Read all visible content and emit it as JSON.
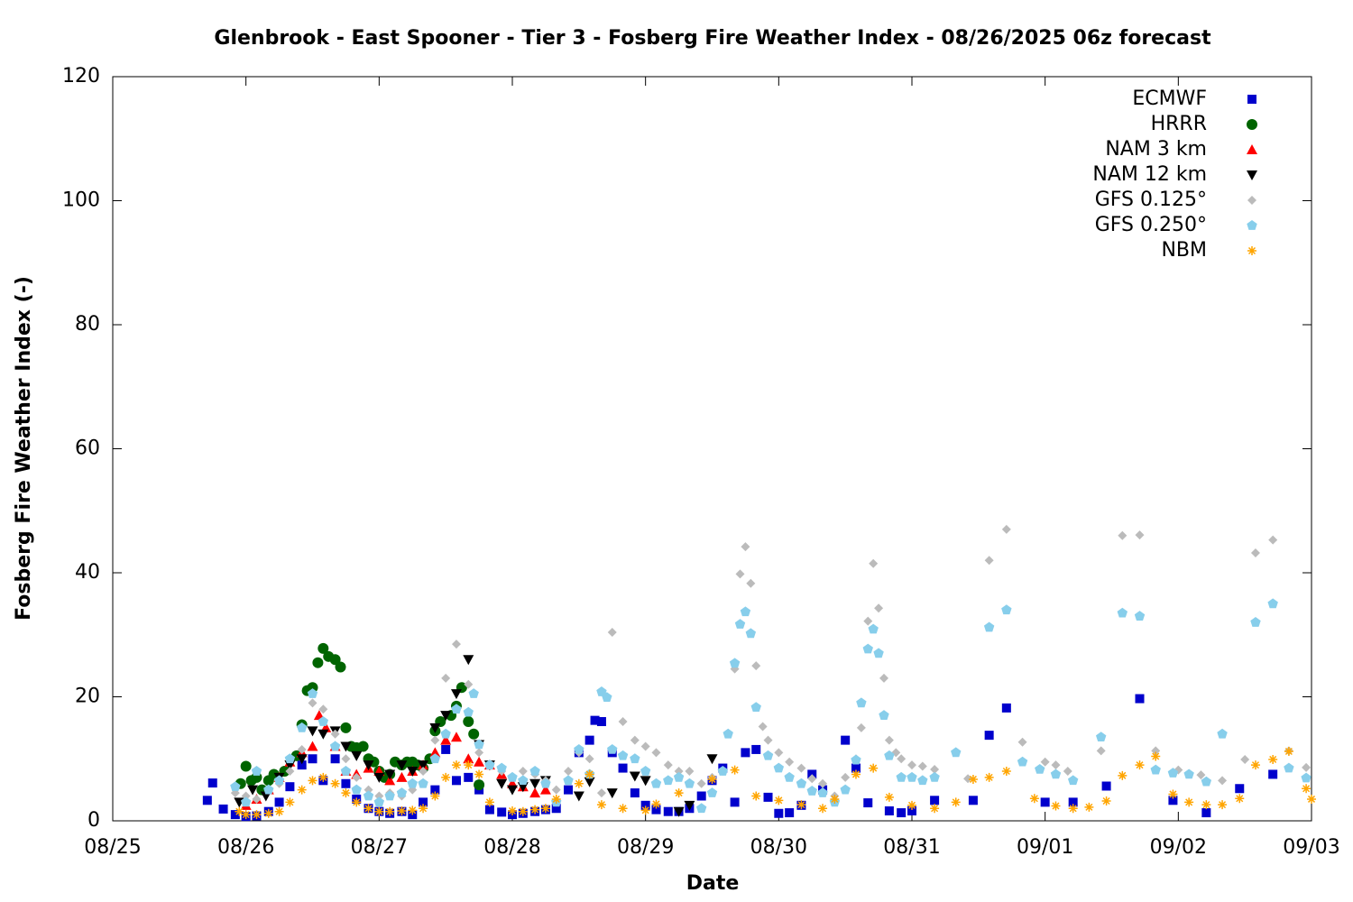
{
  "chart_data": {
    "type": "scatter",
    "title": "Glenbrook - East Spooner - Tier 3 - Fosberg Fire Weather Index - 08/26/2025 06z forecast",
    "x_label": "Date",
    "y_label": "Fosberg Fire Weather Index (-)",
    "xlim": [
      0,
      9
    ],
    "xticks": [
      {
        "value": 0,
        "label": "08/25"
      },
      {
        "value": 1,
        "label": "08/26"
      },
      {
        "value": 2,
        "label": "08/27"
      },
      {
        "value": 3,
        "label": "08/28"
      },
      {
        "value": 4,
        "label": "08/29"
      },
      {
        "value": 5,
        "label": "08/30"
      },
      {
        "value": 6,
        "label": "08/31"
      },
      {
        "value": 7,
        "label": "09/01"
      },
      {
        "value": 8,
        "label": "09/02"
      },
      {
        "value": 9,
        "label": "09/03"
      }
    ],
    "ylim": [
      0,
      120
    ],
    "yticks": [
      0,
      20,
      40,
      60,
      80,
      100,
      120
    ],
    "legend": "top-right",
    "series": [
      {
        "name": "ECMWF",
        "color": "#0000cc",
        "marker": "square",
        "x": [
          0.71,
          0.75,
          0.83,
          0.92,
          1.0,
          1.08,
          1.17,
          1.25,
          1.33,
          1.42,
          1.5,
          1.58,
          1.67,
          1.75,
          1.83,
          1.92,
          2.0,
          2.08,
          2.17,
          2.25,
          2.33,
          2.42,
          2.5,
          2.58,
          2.67,
          2.75,
          2.83,
          2.92,
          3.0,
          3.08,
          3.17,
          3.25,
          3.33,
          3.42,
          3.5,
          3.58,
          3.62,
          3.67,
          3.75,
          3.83,
          3.92,
          4.0,
          4.08,
          4.17,
          4.25,
          4.33,
          4.42,
          4.5,
          4.58,
          4.67,
          4.75,
          4.83,
          4.92,
          5.0,
          5.08,
          5.17,
          5.25,
          5.33,
          5.5,
          5.58,
          5.67,
          5.83,
          5.92,
          6.0,
          6.17,
          6.46,
          6.58,
          6.71,
          7.0,
          7.21,
          7.46,
          7.71,
          7.96,
          8.21,
          8.46,
          8.71
        ],
        "values": [
          3.3,
          6.1,
          1.9,
          1.0,
          0.7,
          0.8,
          1.5,
          3.0,
          5.5,
          9.0,
          10,
          6.5,
          10,
          6,
          3.5,
          2.0,
          1.5,
          1.2,
          1.5,
          1.0,
          3.0,
          5,
          11.5,
          6.5,
          7,
          5,
          1.8,
          1.4,
          1.0,
          1.2,
          1.5,
          1.8,
          2.0,
          5,
          11,
          13,
          16.2,
          16,
          11,
          8.5,
          4.5,
          2.5,
          1.8,
          1.5,
          1.5,
          2.0,
          4,
          6.5,
          8.5,
          3.0,
          11,
          11.5,
          3.8,
          1.2,
          1.3,
          2.5,
          7.5,
          5.0,
          13,
          8.5,
          2.9,
          1.6,
          1.3,
          1.6,
          3.3,
          3.3,
          13.8,
          18.2,
          3.0,
          3.0,
          5.6,
          19.7,
          3.3,
          1.3,
          5.2,
          7.5
        ]
      },
      {
        "name": "HRRR",
        "color": "#006400",
        "marker": "circle",
        "x": [
          0.96,
          1.0,
          1.04,
          1.08,
          1.12,
          1.17,
          1.21,
          1.29,
          1.38,
          1.42,
          1.46,
          1.5,
          1.54,
          1.58,
          1.62,
          1.67,
          1.71,
          1.75,
          1.79,
          1.83,
          1.88,
          1.92,
          1.96,
          2.0,
          2.04,
          2.08,
          2.12,
          2.17,
          2.21,
          2.25,
          2.29,
          2.33,
          2.38,
          2.42,
          2.46,
          2.54,
          2.58,
          2.62,
          2.67,
          2.71,
          2.75
        ],
        "values": [
          6,
          8.8,
          6.5,
          7,
          5,
          6.5,
          7.5,
          8,
          10.5,
          15.5,
          21,
          21.5,
          25.5,
          27.8,
          26.5,
          26,
          24.8,
          15,
          12,
          11.8,
          12,
          10,
          9.5,
          8,
          7,
          7.5,
          9.5,
          9,
          9.5,
          9.5,
          9,
          8.5,
          10,
          14.5,
          16,
          17,
          18.5,
          21.5,
          16,
          14,
          5.8
        ]
      },
      {
        "name": "NAM 3 km",
        "color": "#ff0000",
        "marker": "triangle-up",
        "x": [
          1.0,
          1.08,
          1.17,
          1.25,
          1.33,
          1.42,
          1.5,
          1.55,
          1.6,
          1.67,
          1.75,
          1.83,
          1.92,
          2.0,
          2.08,
          2.17,
          2.25,
          2.33,
          2.42,
          2.5,
          2.58,
          2.67,
          2.75,
          2.83,
          2.92,
          3.0,
          3.08,
          3.17,
          3.25
        ],
        "values": [
          2.5,
          3.5,
          5,
          7,
          9.5,
          11,
          12,
          17,
          15,
          12,
          8,
          7.5,
          8.5,
          8,
          6.5,
          7,
          8,
          9,
          11,
          13,
          13.5,
          10,
          9.5,
          9,
          7.5,
          6,
          5.5,
          4.5,
          5
        ]
      },
      {
        "name": "NAM 12 km",
        "color": "#000000",
        "marker": "triangle-down",
        "x": [
          0.95,
          1.05,
          1.15,
          1.25,
          1.33,
          1.42,
          1.5,
          1.58,
          1.67,
          1.75,
          1.83,
          1.92,
          2.0,
          2.08,
          2.17,
          2.25,
          2.33,
          2.42,
          2.5,
          2.58,
          2.67,
          2.75,
          2.83,
          2.92,
          3.0,
          3.08,
          3.17,
          3.25,
          3.5,
          3.58,
          3.75,
          3.92,
          4.0,
          4.25,
          4.33,
          4.5
        ],
        "values": [
          3,
          5,
          4,
          7,
          9,
          10,
          14.5,
          14,
          14.5,
          12,
          10.5,
          9,
          7,
          7.5,
          9,
          8,
          9,
          15,
          17,
          20.5,
          26,
          12.3,
          9,
          6,
          5,
          5.5,
          6,
          6.5,
          4,
          6.3,
          4.5,
          7.2,
          6.5,
          1.5,
          2.5,
          10
        ]
      },
      {
        "name": "GFS 0.125°",
        "color": "#bbbbbb",
        "marker": "diamond",
        "x": [
          0.92,
          1.0,
          1.08,
          1.17,
          1.25,
          1.33,
          1.42,
          1.5,
          1.58,
          1.67,
          1.75,
          1.83,
          1.92,
          2.0,
          2.08,
          2.17,
          2.25,
          2.33,
          2.42,
          2.5,
          2.58,
          2.67,
          2.75,
          2.83,
          2.92,
          3.0,
          3.08,
          3.17,
          3.25,
          3.33,
          3.42,
          3.5,
          3.58,
          3.67,
          3.75,
          3.83,
          3.92,
          4.0,
          4.08,
          4.17,
          4.25,
          4.33,
          4.42,
          4.5,
          4.58,
          4.67,
          4.71,
          4.75,
          4.79,
          4.83,
          4.88,
          4.92,
          5.0,
          5.08,
          5.17,
          5.25,
          5.33,
          5.42,
          5.5,
          5.58,
          5.62,
          5.67,
          5.71,
          5.75,
          5.79,
          5.83,
          5.88,
          5.92,
          6.0,
          6.08,
          6.17,
          6.42,
          6.58,
          6.71,
          6.83,
          7.0,
          7.08,
          7.17,
          7.42,
          7.58,
          7.71,
          7.83,
          8.0,
          8.17,
          8.33,
          8.5,
          8.58,
          8.71,
          8.83,
          8.96
        ],
        "values": [
          4.5,
          4,
          3.5,
          5,
          6,
          8,
          11.5,
          19,
          18,
          14,
          10,
          7,
          5,
          4,
          4.5,
          4,
          5,
          8,
          13,
          23,
          28.5,
          22,
          11,
          9,
          8,
          7,
          8,
          7.5,
          6.5,
          5,
          8,
          11,
          10,
          4.5,
          30.4,
          16,
          13,
          12,
          11,
          9,
          8,
          8,
          6,
          7,
          8,
          24.5,
          39.8,
          44.2,
          38.3,
          25,
          15.2,
          13,
          11,
          9.5,
          8.5,
          6.8,
          6,
          4,
          7,
          10,
          15,
          32.2,
          41.5,
          34.3,
          23,
          13,
          11,
          10,
          9,
          8.8,
          8.3,
          6.8,
          42,
          47,
          12.7,
          9.5,
          9,
          8,
          11.3,
          46,
          46.1,
          11.3,
          8.2,
          7.4,
          6.5,
          9.9,
          43.2,
          45.3,
          11.3,
          8.6
        ]
      },
      {
        "name": "GFS 0.250°",
        "color": "#87ceeb",
        "marker": "pentagon",
        "x": [
          0.92,
          1.0,
          1.08,
          1.17,
          1.25,
          1.33,
          1.42,
          1.5,
          1.58,
          1.67,
          1.75,
          1.83,
          1.92,
          2.0,
          2.08,
          2.17,
          2.25,
          2.33,
          2.42,
          2.5,
          2.58,
          2.67,
          2.71,
          2.75,
          2.83,
          2.92,
          3.0,
          3.08,
          3.17,
          3.25,
          3.33,
          3.42,
          3.5,
          3.58,
          3.67,
          3.71,
          3.75,
          3.83,
          3.92,
          4.0,
          4.08,
          4.17,
          4.25,
          4.33,
          4.42,
          4.5,
          4.58,
          4.62,
          4.67,
          4.71,
          4.75,
          4.79,
          4.83,
          4.92,
          5.0,
          5.08,
          5.17,
          5.25,
          5.33,
          5.42,
          5.5,
          5.58,
          5.62,
          5.67,
          5.71,
          5.75,
          5.79,
          5.83,
          5.92,
          6.0,
          6.08,
          6.17,
          6.33,
          6.58,
          6.71,
          6.83,
          6.96,
          7.08,
          7.21,
          7.42,
          7.58,
          7.71,
          7.83,
          7.96,
          8.08,
          8.21,
          8.33,
          8.58,
          8.71,
          8.83,
          8.96
        ],
        "values": [
          5.5,
          3,
          8,
          5,
          6.5,
          10,
          15,
          20.5,
          16,
          12,
          8,
          5,
          4,
          3,
          4,
          4.5,
          6,
          6,
          10,
          14,
          18,
          17.5,
          20.5,
          12.3,
          9,
          8.5,
          7,
          6.5,
          8,
          6,
          3,
          6.5,
          11.5,
          7.5,
          20.8,
          19.9,
          11.5,
          10.5,
          10,
          8,
          6,
          6.5,
          7,
          6,
          2,
          4.5,
          8,
          14,
          25.4,
          31.7,
          33.7,
          30.2,
          18.3,
          10.5,
          8.5,
          7,
          6,
          4.8,
          4.5,
          3,
          5,
          9.8,
          19,
          27.7,
          30.9,
          27,
          17,
          10.5,
          7,
          7,
          6.5,
          7,
          11,
          31.2,
          34,
          9.5,
          8.3,
          7.5,
          6.5,
          13.5,
          33.5,
          33,
          8.2,
          7.7,
          7.5,
          6.3,
          14,
          32,
          35,
          8.5,
          6.9
        ]
      },
      {
        "name": "NBM",
        "color": "#ffa500",
        "marker": "asterisk",
        "x": [
          0.95,
          1.0,
          1.08,
          1.17,
          1.25,
          1.33,
          1.42,
          1.5,
          1.58,
          1.67,
          1.75,
          1.83,
          1.92,
          2.0,
          2.08,
          2.17,
          2.25,
          2.33,
          2.42,
          2.5,
          2.58,
          2.67,
          2.75,
          2.83,
          3.0,
          3.08,
          3.17,
          3.25,
          3.33,
          3.5,
          3.58,
          3.67,
          3.83,
          4.0,
          4.08,
          4.25,
          4.5,
          4.67,
          4.83,
          5.0,
          5.17,
          5.33,
          5.42,
          5.58,
          5.71,
          5.83,
          6.0,
          6.17,
          6.33,
          6.46,
          6.58,
          6.71,
          6.92,
          7.08,
          7.21,
          7.33,
          7.46,
          7.58,
          7.71,
          7.83,
          7.96,
          8.08,
          8.21,
          8.33,
          8.46,
          8.58,
          8.71,
          8.83,
          8.96,
          9.0
        ],
        "values": [
          1.5,
          1,
          1,
          1.2,
          1.5,
          3,
          5,
          6.5,
          7,
          6,
          4.5,
          3,
          2,
          1.5,
          1.5,
          1.6,
          1.7,
          2,
          4,
          7,
          9,
          9,
          7.5,
          3,
          1.6,
          1.5,
          1.8,
          2.0,
          3.5,
          6,
          7.5,
          2.6,
          2,
          1.7,
          2.7,
          4.5,
          6.7,
          8.2,
          4,
          3.3,
          2.6,
          2,
          3.5,
          7.5,
          8.5,
          3.8,
          2.5,
          2,
          3,
          6.7,
          7,
          8,
          3.6,
          2.4,
          2,
          2.2,
          3.2,
          7.3,
          9,
          10.4,
          4.3,
          3,
          2.6,
          2.6,
          3.6,
          9,
          9.9,
          11.2,
          5.2,
          3.5
        ]
      }
    ]
  }
}
